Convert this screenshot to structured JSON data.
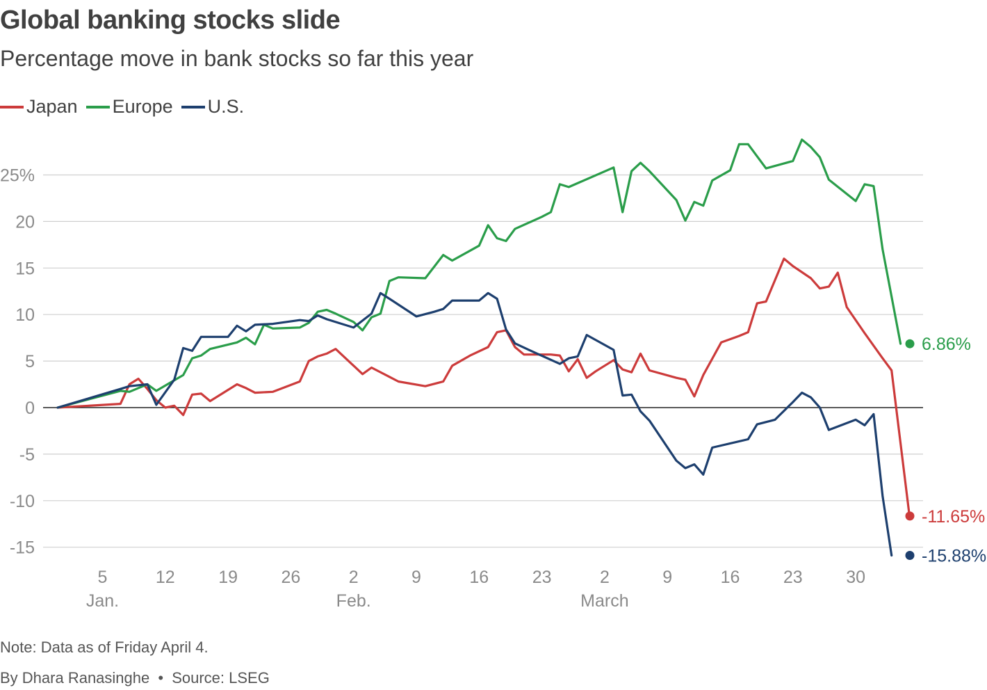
{
  "chart_data": {
    "type": "line",
    "title": "Global banking stocks slide",
    "subtitle": "Percentage move in bank stocks so far this year",
    "xlabel": "",
    "ylabel": "",
    "ylim": [
      -16,
      28
    ],
    "yticks": [
      {
        "value": 25,
        "label": "25%"
      },
      {
        "value": 20,
        "label": "20"
      },
      {
        "value": 15,
        "label": "15"
      },
      {
        "value": 10,
        "label": "10"
      },
      {
        "value": 5,
        "label": "5"
      },
      {
        "value": 0,
        "label": "0"
      },
      {
        "value": -5,
        "label": "-5"
      },
      {
        "value": -10,
        "label": "-10"
      },
      {
        "value": -15,
        "label": "-15"
      }
    ],
    "xlim": [
      0,
      94
    ],
    "xticks": [
      {
        "day": 5,
        "label": "5",
        "month": "Jan."
      },
      {
        "day": 12,
        "label": "12"
      },
      {
        "day": 19,
        "label": "19"
      },
      {
        "day": 26,
        "label": "26"
      },
      {
        "day": 33,
        "label": "2",
        "month": "Feb."
      },
      {
        "day": 40,
        "label": "9"
      },
      {
        "day": 47,
        "label": "16"
      },
      {
        "day": 54,
        "label": "23"
      },
      {
        "day": 61,
        "label": "2",
        "month": "March"
      },
      {
        "day": 68,
        "label": "9"
      },
      {
        "day": 75,
        "label": "16"
      },
      {
        "day": 82,
        "label": "23"
      },
      {
        "day": 89,
        "label": "30"
      }
    ],
    "series": [
      {
        "name": "Japan",
        "color": "#cc3b3b",
        "end_label": "-11.65%",
        "points": [
          [
            0,
            0
          ],
          [
            7,
            0.4
          ],
          [
            8,
            2.5
          ],
          [
            9,
            3.1
          ],
          [
            10,
            2.0
          ],
          [
            11,
            0.8
          ],
          [
            12,
            0
          ],
          [
            13,
            0.2
          ],
          [
            14,
            -0.8
          ],
          [
            15,
            1.4
          ],
          [
            16,
            1.5
          ],
          [
            17,
            0.7
          ],
          [
            20,
            2.5
          ],
          [
            21,
            2.1
          ],
          [
            22,
            1.6
          ],
          [
            24,
            1.7
          ],
          [
            27,
            2.8
          ],
          [
            28,
            5.0
          ],
          [
            29,
            5.5
          ],
          [
            30,
            5.8
          ],
          [
            31,
            6.3
          ],
          [
            34,
            3.6
          ],
          [
            35,
            4.3
          ],
          [
            37,
            3.3
          ],
          [
            38,
            2.8
          ],
          [
            41,
            2.3
          ],
          [
            43,
            2.8
          ],
          [
            44,
            4.5
          ],
          [
            46,
            5.6
          ],
          [
            48,
            6.5
          ],
          [
            49,
            8.1
          ],
          [
            50,
            8.3
          ],
          [
            51,
            6.5
          ],
          [
            52,
            5.7
          ],
          [
            55,
            5.7
          ],
          [
            56,
            5.6
          ],
          [
            57,
            3.9
          ],
          [
            58,
            5.2
          ],
          [
            59,
            3.2
          ],
          [
            60,
            3.9
          ],
          [
            62,
            5.1
          ],
          [
            63,
            4.1
          ],
          [
            64,
            3.8
          ],
          [
            65,
            5.8
          ],
          [
            66,
            4.0
          ],
          [
            69,
            3.2
          ],
          [
            70,
            3.0
          ],
          [
            71,
            1.2
          ],
          [
            72,
            3.5
          ],
          [
            74,
            7.0
          ],
          [
            76,
            7.7
          ],
          [
            77,
            8.1
          ],
          [
            78,
            11.2
          ],
          [
            79,
            11.4
          ],
          [
            81,
            16.0
          ],
          [
            82,
            15.2
          ],
          [
            84,
            13.9
          ],
          [
            85,
            12.8
          ],
          [
            86,
            13.0
          ],
          [
            87,
            14.5
          ],
          [
            88,
            10.8
          ],
          [
            90,
            8.0
          ],
          [
            92,
            5.3
          ],
          [
            93,
            4.0
          ],
          [
            95,
            -11.65
          ]
        ]
      },
      {
        "name": "Europe",
        "color": "#2a9d4a",
        "end_label": "6.86%",
        "points": [
          [
            0,
            0
          ],
          [
            7,
            1.8
          ],
          [
            8,
            1.7
          ],
          [
            10,
            2.5
          ],
          [
            11,
            1.8
          ],
          [
            14,
            3.5
          ],
          [
            15,
            5.3
          ],
          [
            16,
            5.6
          ],
          [
            17,
            6.3
          ],
          [
            20,
            7.0
          ],
          [
            21,
            7.5
          ],
          [
            22,
            6.8
          ],
          [
            23,
            8.9
          ],
          [
            24,
            8.5
          ],
          [
            27,
            8.6
          ],
          [
            28,
            9.1
          ],
          [
            29,
            10.3
          ],
          [
            30,
            10.5
          ],
          [
            31,
            10.1
          ],
          [
            33,
            9.2
          ],
          [
            34,
            8.3
          ],
          [
            35,
            9.7
          ],
          [
            36,
            10.1
          ],
          [
            37,
            13.6
          ],
          [
            38,
            14.0
          ],
          [
            41,
            13.9
          ],
          [
            43,
            16.4
          ],
          [
            44,
            15.8
          ],
          [
            47,
            17.4
          ],
          [
            48,
            19.6
          ],
          [
            49,
            18.2
          ],
          [
            50,
            17.9
          ],
          [
            51,
            19.2
          ],
          [
            54,
            20.5
          ],
          [
            55,
            21.0
          ],
          [
            56,
            24.0
          ],
          [
            57,
            23.7
          ],
          [
            62,
            25.8
          ],
          [
            63,
            21.0
          ],
          [
            64,
            25.4
          ],
          [
            65,
            26.3
          ],
          [
            66,
            25.4
          ],
          [
            69,
            22.3
          ],
          [
            70,
            20.1
          ],
          [
            71,
            22.1
          ],
          [
            72,
            21.7
          ],
          [
            73,
            24.4
          ],
          [
            75,
            25.5
          ],
          [
            76,
            28.3
          ],
          [
            77,
            28.3
          ],
          [
            79,
            25.7
          ],
          [
            82,
            26.5
          ],
          [
            83,
            28.8
          ],
          [
            84,
            28.0
          ],
          [
            85,
            26.9
          ],
          [
            86,
            24.5
          ],
          [
            89,
            22.2
          ],
          [
            90,
            24.0
          ],
          [
            91,
            23.8
          ],
          [
            92,
            17.0
          ],
          [
            94,
            6.86
          ]
        ]
      },
      {
        "name": "U.S.",
        "color": "#1d3f6e",
        "end_label": "-15.88%",
        "points": [
          [
            0,
            0
          ],
          [
            7,
            2.0
          ],
          [
            8,
            2.3
          ],
          [
            10,
            2.5
          ],
          [
            11,
            0.3
          ],
          [
            13,
            3.0
          ],
          [
            14,
            6.4
          ],
          [
            15,
            6.1
          ],
          [
            16,
            7.6
          ],
          [
            19,
            7.6
          ],
          [
            20,
            8.8
          ],
          [
            21,
            8.2
          ],
          [
            22,
            8.9
          ],
          [
            24,
            9.0
          ],
          [
            27,
            9.4
          ],
          [
            28,
            9.3
          ],
          [
            29,
            9.9
          ],
          [
            30,
            9.5
          ],
          [
            33,
            8.6
          ],
          [
            35,
            10.1
          ],
          [
            36,
            12.3
          ],
          [
            37,
            11.7
          ],
          [
            40,
            9.8
          ],
          [
            42,
            10.3
          ],
          [
            43,
            10.6
          ],
          [
            44,
            11.5
          ],
          [
            47,
            11.5
          ],
          [
            48,
            12.3
          ],
          [
            49,
            11.7
          ],
          [
            50,
            8.4
          ],
          [
            51,
            6.9
          ],
          [
            53,
            6.0
          ],
          [
            56,
            4.7
          ],
          [
            57,
            5.3
          ],
          [
            58,
            5.5
          ],
          [
            59,
            7.8
          ],
          [
            62,
            6.2
          ],
          [
            63,
            1.3
          ],
          [
            64,
            1.4
          ],
          [
            65,
            -0.4
          ],
          [
            66,
            -1.4
          ],
          [
            69,
            -5.7
          ],
          [
            70,
            -6.5
          ],
          [
            71,
            -6.1
          ],
          [
            72,
            -7.2
          ],
          [
            73,
            -4.3
          ],
          [
            77,
            -3.4
          ],
          [
            78,
            -1.8
          ],
          [
            80,
            -1.3
          ],
          [
            82,
            0.6
          ],
          [
            83,
            1.6
          ],
          [
            84,
            1.1
          ],
          [
            85,
            0.0
          ],
          [
            86,
            -2.4
          ],
          [
            89,
            -1.3
          ],
          [
            90,
            -1.9
          ],
          [
            91,
            -0.7
          ],
          [
            92,
            -9.5
          ],
          [
            93,
            -15.88
          ]
        ]
      }
    ]
  },
  "legend": {
    "items": [
      {
        "label": "Japan",
        "color": "#cc3b3b"
      },
      {
        "label": "Europe",
        "color": "#2a9d4a"
      },
      {
        "label": "U.S.",
        "color": "#1d3f6e"
      }
    ]
  },
  "footer": {
    "note": "Note: Data as of Friday April 4.",
    "byline": "By Dhara Ranasinghe",
    "separator": "•",
    "source": "Source: LSEG"
  }
}
